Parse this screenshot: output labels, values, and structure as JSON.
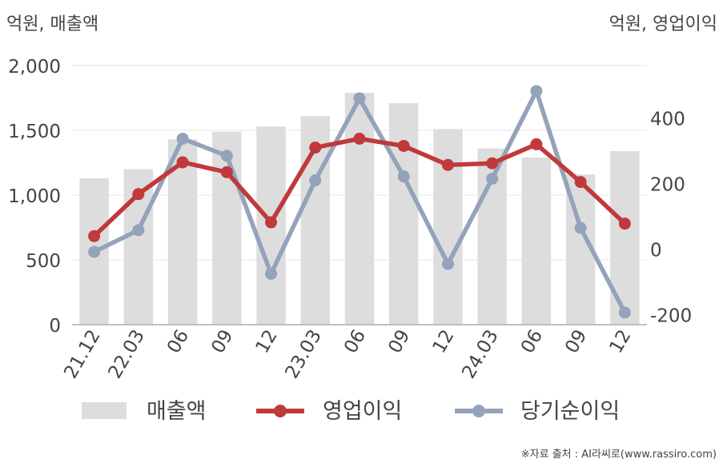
{
  "chart_data": {
    "type": "bar+line",
    "left_axis_unit": "억원, 매출액",
    "right_axis_unit": "억원, 영업이익",
    "categories": [
      "21.12",
      "22.03",
      "06",
      "09",
      "12",
      "23.03",
      "06",
      "09",
      "12",
      "24.03",
      "06",
      "09",
      "12"
    ],
    "left_ylim": [
      0,
      2000
    ],
    "left_ticks": [
      0,
      500,
      1000,
      1500,
      2000
    ],
    "left_tick_labels": [
      "0",
      "500",
      "1,000",
      "1,500",
      "2,000"
    ],
    "right_ylim": [
      -230,
      560
    ],
    "right_ticks": [
      -200,
      0,
      200,
      400
    ],
    "right_tick_labels": [
      "-200",
      "0",
      "200",
      "400"
    ],
    "grid": true,
    "legend_position": "bottom",
    "series": [
      {
        "name": "매출액",
        "kind": "bar",
        "axis": "left",
        "color": "#dddddd",
        "values": [
          1130,
          1200,
          1430,
          1490,
          1530,
          1610,
          1790,
          1710,
          1510,
          1360,
          1290,
          1160,
          1340
        ]
      },
      {
        "name": "영업이익",
        "kind": "line",
        "axis": "right",
        "color": "#c0393b",
        "values": [
          40,
          168,
          265,
          235,
          82,
          310,
          337,
          315,
          257,
          262,
          320,
          205,
          78
        ]
      },
      {
        "name": "당기순이익",
        "kind": "line",
        "axis": "right",
        "color": "#94a3ba",
        "values": [
          -8,
          58,
          337,
          285,
          -75,
          210,
          460,
          222,
          -45,
          215,
          482,
          65,
          -193
        ]
      }
    ]
  },
  "source_text": "※자료 출처 : AI라씨로(www.rassiro.com)"
}
